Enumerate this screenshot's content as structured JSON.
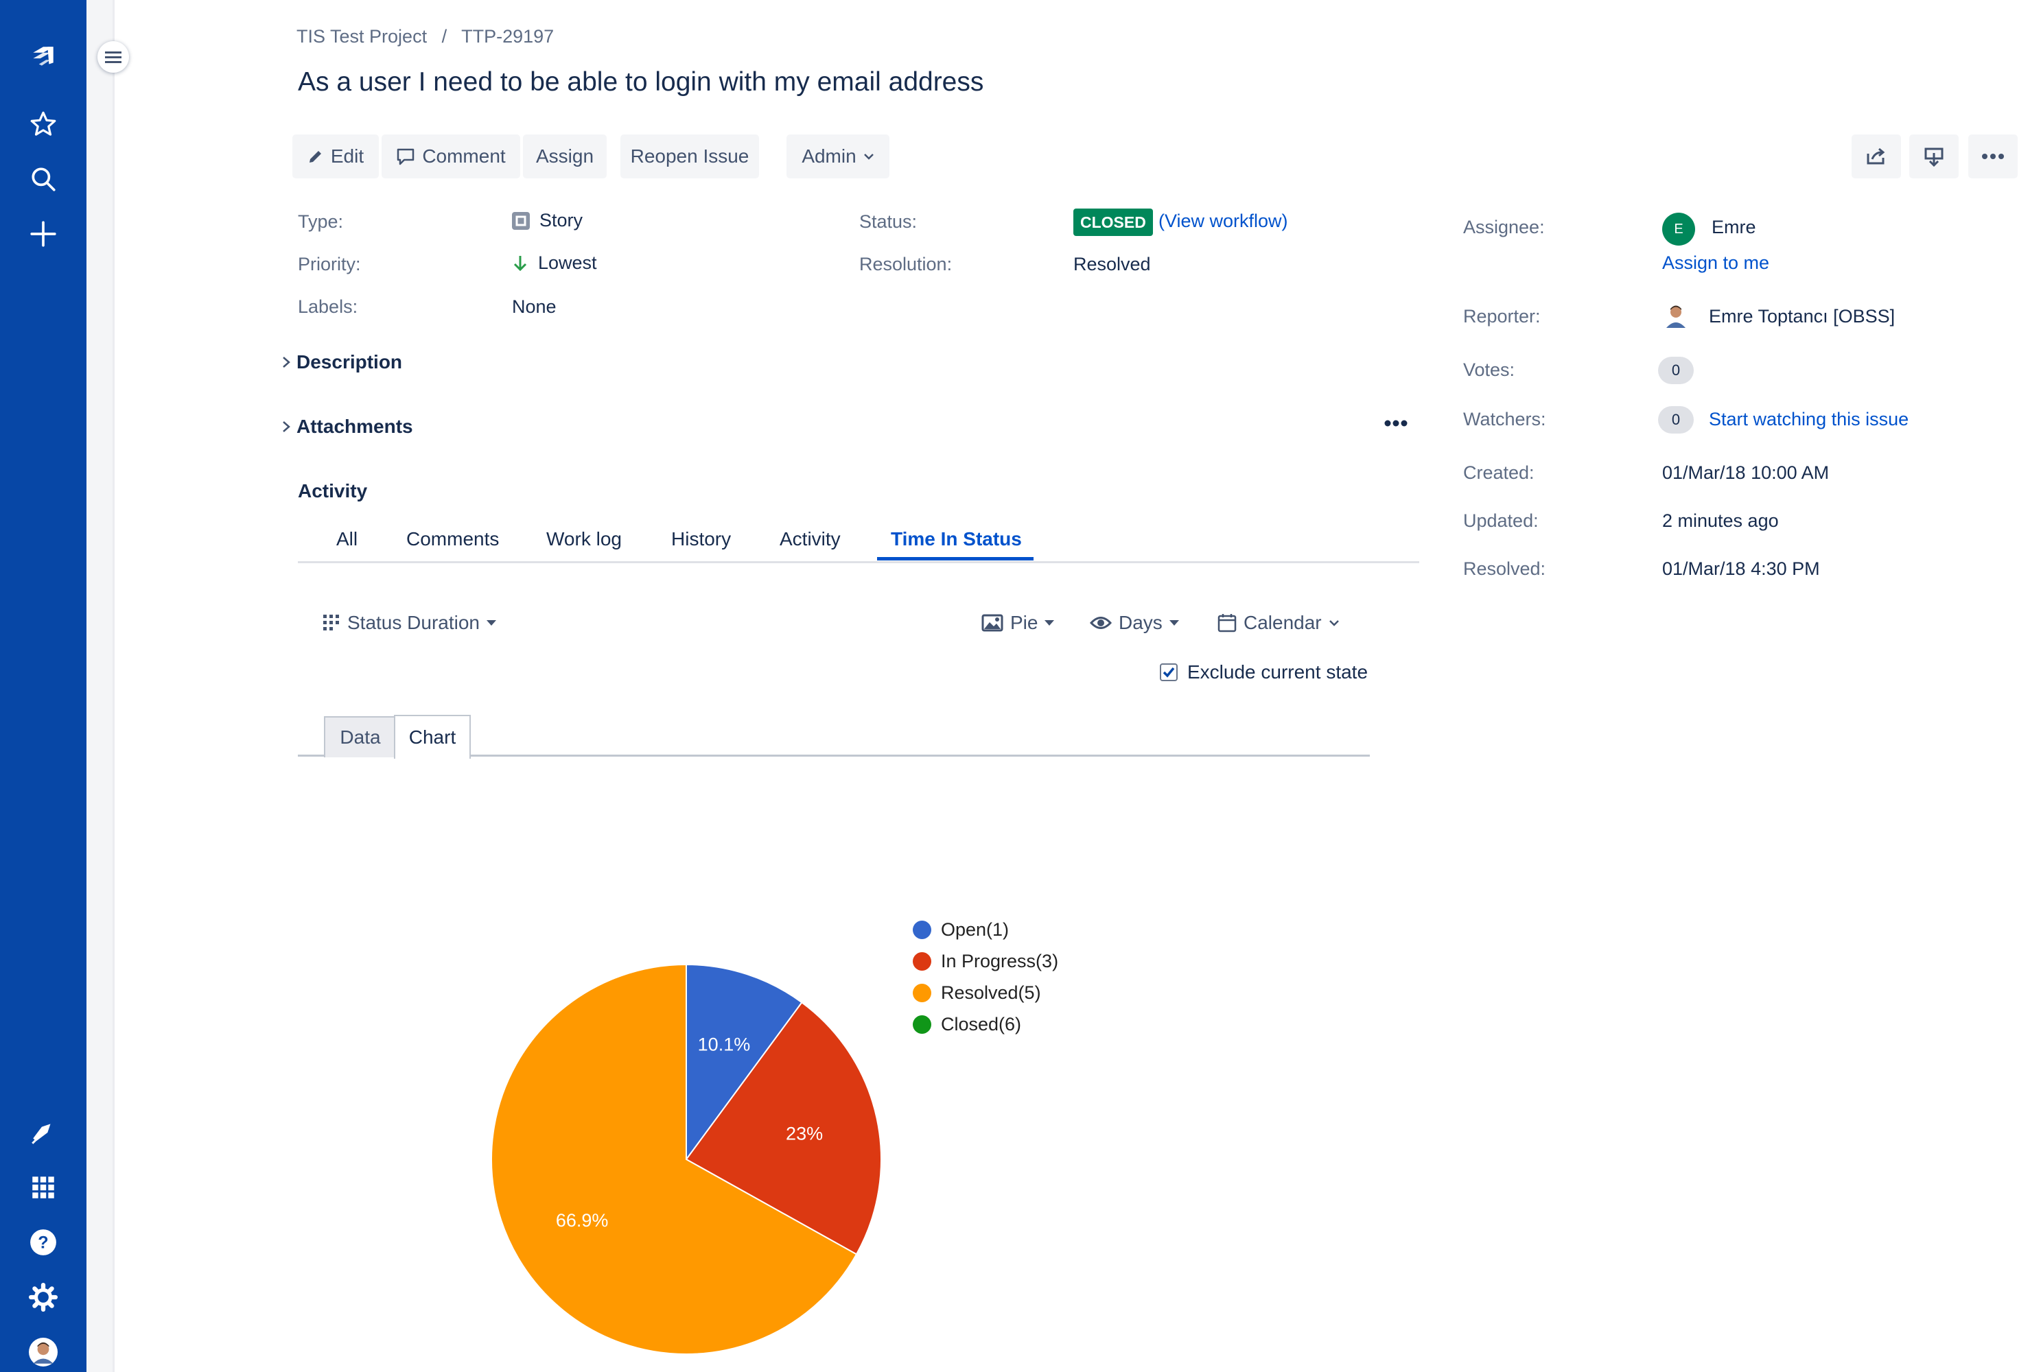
{
  "breadcrumb": {
    "project": "TIS Test Project",
    "separator": "/",
    "issue_key": "TTP-29197"
  },
  "issue_title": "As a user I need to be able to login with my email address",
  "toolbar": {
    "edit": "Edit",
    "comment": "Comment",
    "assign": "Assign",
    "reopen": "Reopen Issue",
    "admin": "Admin"
  },
  "details": {
    "type_label": "Type:",
    "type_value": "Story",
    "priority_label": "Priority:",
    "priority_value": "Lowest",
    "labels_label": "Labels:",
    "labels_value": "None",
    "status_label": "Status:",
    "status_value": "CLOSED",
    "status_color": "#00875a",
    "view_workflow": "(View workflow)",
    "resolution_label": "Resolution:",
    "resolution_value": "Resolved"
  },
  "people": {
    "assignee_label": "Assignee:",
    "assignee_initial": "E",
    "assignee_name": "Emre",
    "assign_to_me": "Assign to me",
    "reporter_label": "Reporter:",
    "reporter_name": "Emre Toptancı [OBSS]",
    "votes_label": "Votes:",
    "votes_count": "0",
    "watchers_label": "Watchers:",
    "watchers_count": "0",
    "start_watching": "Start watching this issue"
  },
  "dates": {
    "created_label": "Created:",
    "created_value": "01/Mar/18 10:00 AM",
    "updated_label": "Updated:",
    "updated_value": "2 minutes ago",
    "resolved_label": "Resolved:",
    "resolved_value": "01/Mar/18 4:30 PM"
  },
  "sections": {
    "description": "Description",
    "attachments": "Attachments",
    "activity": "Activity"
  },
  "activity_tabs": [
    "All",
    "Comments",
    "Work log",
    "History",
    "Activity",
    "Time In Status"
  ],
  "active_tab": "Time In Status",
  "tis_toolbar": {
    "status_duration": "Status Duration",
    "chart_type": "Pie",
    "unit": "Days",
    "calendar": "Calendar",
    "exclude_current_state": "Exclude current state",
    "exclude_checked": true
  },
  "view_tabs": {
    "data": "Data",
    "chart": "Chart",
    "active": "Chart"
  },
  "chart_data": {
    "type": "pie",
    "categories": [
      "Open(1)",
      "In Progress(3)",
      "Resolved(5)",
      "Closed(6)"
    ],
    "values": [
      10.1,
      23,
      66.9,
      0
    ],
    "labels": [
      "10.1%",
      "23%",
      "66.9%",
      ""
    ],
    "colors": [
      "#3366cc",
      "#dc3912",
      "#ff9900",
      "#109618"
    ],
    "legend_position": "right"
  },
  "icons": {
    "nav": [
      "jira-logo-icon",
      "star-icon",
      "search-icon",
      "plus-icon",
      "megaphone-icon",
      "app-switcher-icon",
      "help-icon",
      "settings-icon",
      "avatar"
    ]
  }
}
